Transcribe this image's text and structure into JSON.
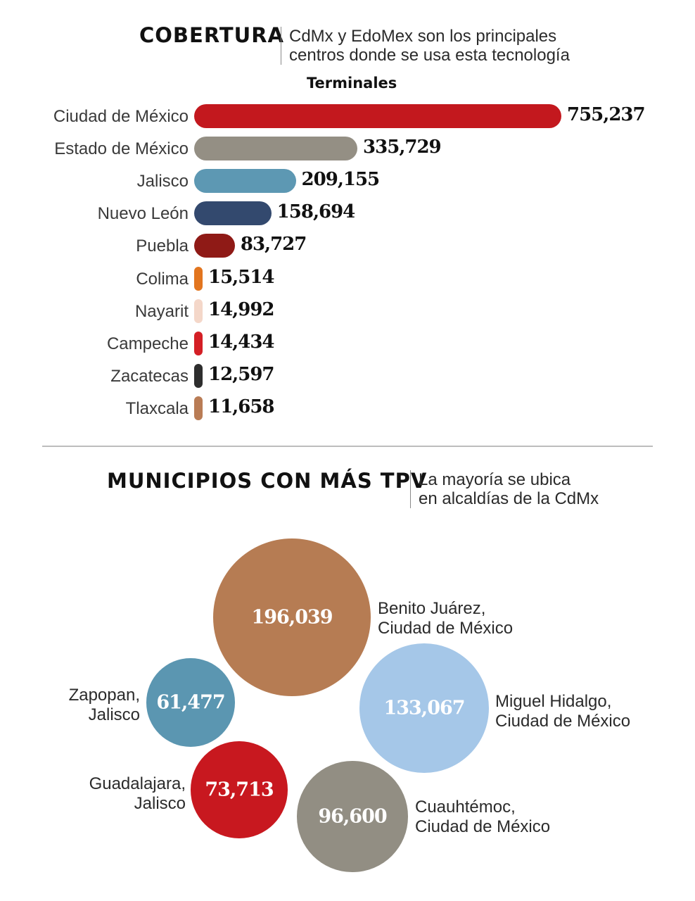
{
  "coverage": {
    "title": "COBERTURA",
    "subtitle": [
      "CdMx y EdoMex son los principales",
      "centros donde se usa esta tecnología"
    ]
  },
  "municipios": {
    "title": "MUNICIPIOS CON MÁS TPV",
    "subtitle": [
      "La mayoría se ubica",
      "en alcaldías de la CdMx"
    ]
  },
  "chart_data": [
    {
      "type": "bar",
      "orientation": "horizontal",
      "title": "Terminales",
      "categories": [
        "Ciudad de México",
        "Estado de México",
        "Jalisco",
        "Nuevo León",
        "Puebla",
        "Colima",
        "Nayarit",
        "Campeche",
        "Zacatecas",
        "Tlaxcala"
      ],
      "values": [
        755237,
        335729,
        209155,
        158694,
        83727,
        15514,
        14992,
        14434,
        12597,
        11658
      ],
      "value_labels": [
        "755,237",
        "335,729",
        "209,155",
        "158,694",
        "83,727",
        "15,514",
        "14,992",
        "14,434",
        "12,597",
        "11,658"
      ],
      "colors": [
        "#c3181e",
        "#948f84",
        "#5d98b3",
        "#33496e",
        "#8f1a16",
        "#e2751f",
        "#f4d7c9",
        "#d41f25",
        "#2e2e2e",
        "#b97c55"
      ],
      "xlim": [
        0,
        755237
      ]
    },
    {
      "type": "bubble",
      "title": "MUNICIPIOS CON MÁS TPV",
      "items": [
        {
          "value": 196039,
          "value_label": "196,039",
          "label": [
            "Benito Juárez,",
            "Ciudad de México"
          ],
          "color": "#b67c53"
        },
        {
          "value": 133067,
          "value_label": "133,067",
          "label": [
            "Miguel Hidalgo,",
            "Ciudad de México"
          ],
          "color": "#a5c7e8"
        },
        {
          "value": 96600,
          "value_label": "96,600",
          "label": [
            "Cuauhtémoc,",
            "Ciudad de México"
          ],
          "color": "#928e83"
        },
        {
          "value": 73713,
          "value_label": "73,713",
          "label": [
            "Guadalajara,",
            "Jalisco"
          ],
          "color": "#c8181f"
        },
        {
          "value": 61477,
          "value_label": "61,477",
          "label": [
            "Zapopan,",
            "Jalisco"
          ],
          "color": "#5b96b1"
        }
      ]
    }
  ]
}
